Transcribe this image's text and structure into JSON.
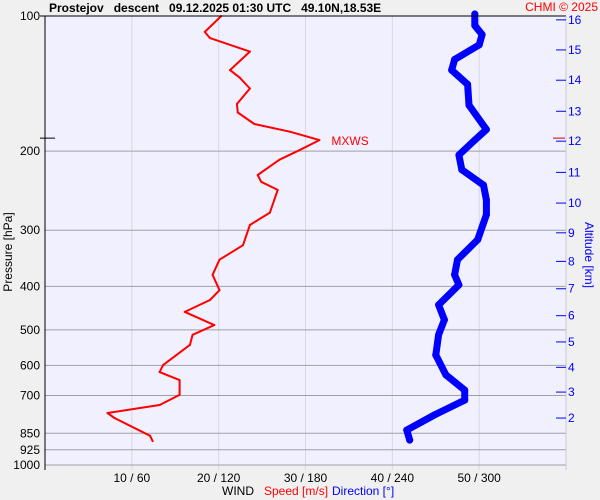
{
  "header": {
    "title": "Prostejov   descent   09.12.2025 01:30 UTC   49.10N,18.53E",
    "copyright": "CHMI © 2025"
  },
  "chart_data": {
    "type": "line",
    "title": "Prostejov   descent   09.12.2025 01:30 UTC   49.10N,18.53E",
    "ylabel": "Pressure [hPa]",
    "y2label": "Altitude [km]",
    "xlabel": {
      "prefix": "WIND",
      "speed": "Speed [m/s]",
      "direction": "Direction [°]"
    },
    "y_scale": "log",
    "ylim": [
      1000,
      100
    ],
    "xlim_speed": [
      0,
      60
    ],
    "xlim_direction": [
      0,
      360
    ],
    "pressure_ticks": [
      "100",
      "200",
      "300",
      "400",
      "500",
      "600",
      "700",
      "850",
      "925",
      "1000"
    ],
    "x_ticks": [
      {
        "speed": 10,
        "dir": 60,
        "label": "10 / 60"
      },
      {
        "speed": 20,
        "dir": 120,
        "label": "20 / 120"
      },
      {
        "speed": 30,
        "dir": 180,
        "label": "30 / 180"
      },
      {
        "speed": 40,
        "dir": 240,
        "label": "40 / 240"
      },
      {
        "speed": 50,
        "dir": 300,
        "label": "50 / 300"
      }
    ],
    "altitude_ticks": [
      {
        "km": "16",
        "p": 102
      },
      {
        "km": "15",
        "p": 119
      },
      {
        "km": "14",
        "p": 139
      },
      {
        "km": "13",
        "p": 163
      },
      {
        "km": "12",
        "p": 190
      },
      {
        "km": "11",
        "p": 223
      },
      {
        "km": "10",
        "p": 261
      },
      {
        "km": "9",
        "p": 304
      },
      {
        "km": "8",
        "p": 352
      },
      {
        "km": "7",
        "p": 405
      },
      {
        "km": "6",
        "p": 465
      },
      {
        "km": "5",
        "p": 532
      },
      {
        "km": "4",
        "p": 606
      },
      {
        "km": "3",
        "p": 688
      },
      {
        "km": "2",
        "p": 786
      }
    ],
    "max_wind": {
      "label": "MXWS",
      "p": 189,
      "speed": 31.6
    },
    "series": [
      {
        "name": "Speed [m/s]",
        "color": "#ff0000",
        "p": [
          100,
          108.5,
          112,
          120,
          132,
          137,
          145,
          157,
          164,
          174,
          181,
          189,
          199,
          209,
          226,
          234,
          244,
          274,
          292,
          324,
          349,
          377,
          408,
          429,
          456,
          488,
          513,
          540,
          599,
          621,
          647,
          698,
          735,
          766,
          786,
          861,
          885
        ],
        "values": [
          20.3,
          18.4,
          19.0,
          23.6,
          21.3,
          22.4,
          23.6,
          22.1,
          22.2,
          24.1,
          28.2,
          31.6,
          29.3,
          27.0,
          24.5,
          24.9,
          26.8,
          25.9,
          23.6,
          22.8,
          20.1,
          19.3,
          20.1,
          19.0,
          16.1,
          19.5,
          17.0,
          16.7,
          13.6,
          13.2,
          15.5,
          15.5,
          13.2,
          7.2,
          8.0,
          12.1,
          12.4
        ]
      },
      {
        "name": "Direction [°]",
        "color": "#0000ff",
        "p": [
          99,
          105,
          110,
          116,
          125,
          132,
          142,
          158,
          179,
          189,
          204,
          220,
          238,
          257,
          277,
          315,
          349,
          377,
          397,
          440,
          475,
          513,
          569,
          630,
          681,
          717,
          774,
          836,
          880
        ],
        "values": [
          297,
          297,
          302,
          300,
          283,
          281,
          292,
          293,
          305,
          297,
          286,
          288,
          303,
          305,
          305,
          299,
          285,
          283,
          286,
          272,
          276,
          272,
          270,
          277,
          290,
          290,
          269,
          250,
          252
        ]
      }
    ]
  }
}
